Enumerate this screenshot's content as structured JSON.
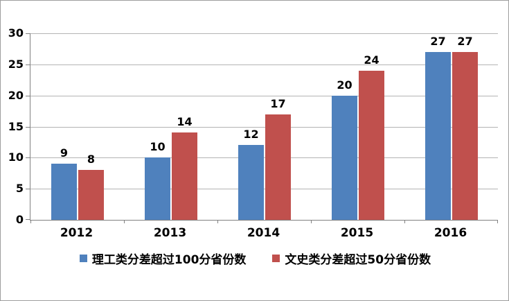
{
  "chart_data": {
    "type": "bar",
    "categories": [
      "2012",
      "2013",
      "2014",
      "2015",
      "2016"
    ],
    "series": [
      {
        "name": "理工类分差超过100分省份数",
        "color": "#4F81BD",
        "values": [
          9,
          10,
          12,
          20,
          27
        ]
      },
      {
        "name": "文史类分差超过50分省份数",
        "color": "#C0504D",
        "values": [
          8,
          14,
          17,
          24,
          27
        ]
      }
    ],
    "title": "",
    "xlabel": "",
    "ylabel": "",
    "ylim": [
      0,
      30
    ],
    "yticks": [
      0,
      5,
      10,
      15,
      20,
      25,
      30
    ],
    "grid": true,
    "legend_position": "bottom",
    "data_labels": true
  },
  "colors": {
    "series_blue": "#4F81BD",
    "series_red": "#C0504D",
    "axis_line": "#808080",
    "gridline": "#B3B3B3",
    "canvas_border": "#9D9D9D",
    "text": "#000000",
    "background": "#FFFFFF"
  }
}
